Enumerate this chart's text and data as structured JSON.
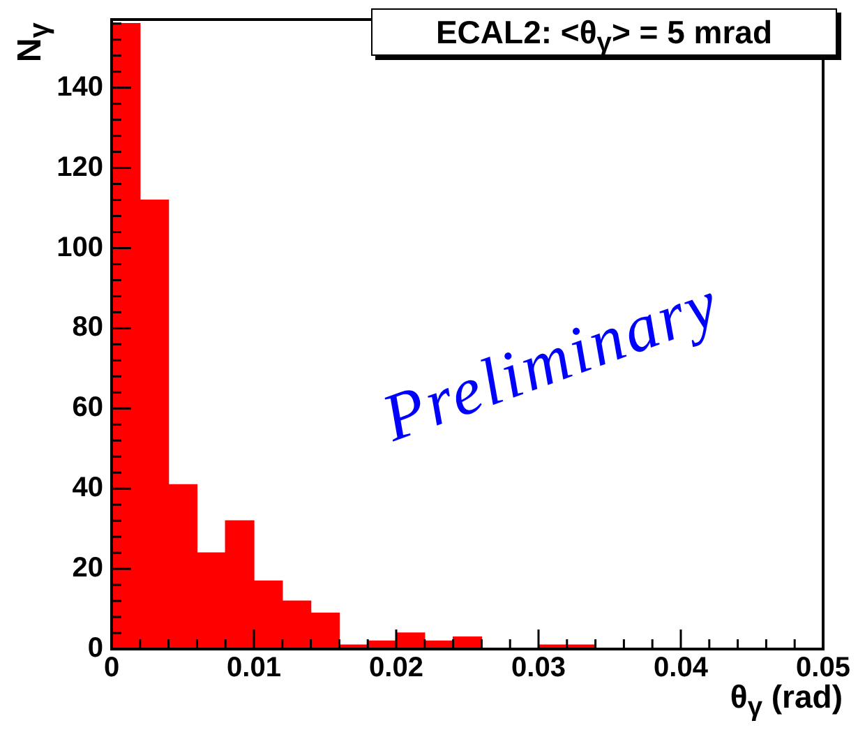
{
  "chart_data": {
    "type": "histogram",
    "title": "ECAL2: <θ$_{γ}$> = 5 mrad",
    "xlabel": "θ$_{γ}$ (rad)",
    "ylabel": "N$_{γ}$",
    "annotations": [
      "Preliminary"
    ],
    "bins": [
      0,
      0.002,
      0.004,
      0.006,
      0.008,
      0.01,
      0.012,
      0.014,
      0.016,
      0.018,
      0.02,
      0.022,
      0.024,
      0.026,
      0.028,
      0.03,
      0.032,
      0.034,
      0.036,
      0.038,
      0.04,
      0.042,
      0.044,
      0.046,
      0.048,
      0.05
    ],
    "values": [
      156,
      112,
      41,
      24,
      32,
      17,
      12,
      9,
      1,
      2,
      4,
      2,
      3,
      0,
      0,
      1,
      1,
      0,
      0,
      0,
      0,
      0,
      0,
      0,
      0
    ],
    "color": "#ff0000",
    "xlim": [
      0,
      0.05
    ],
    "ylim": [
      0,
      157
    ],
    "xticks": [
      0,
      {
        "value": 0.002,
        "label": null
      },
      {
        "value": 0.004,
        "label": null
      },
      {
        "value": 0.006,
        "label": null
      },
      {
        "value": 0.008,
        "label": null
      },
      0.01,
      {
        "value": 0.012,
        "label": null
      },
      {
        "value": 0.014,
        "label": null
      },
      {
        "value": 0.016,
        "label": null
      },
      {
        "value": 0.018,
        "label": null
      },
      0.02,
      {
        "value": 0.022,
        "label": null
      },
      {
        "value": 0.024,
        "label": null
      },
      {
        "value": 0.026,
        "label": null
      },
      {
        "value": 0.028,
        "label": null
      },
      0.03,
      {
        "value": 0.032,
        "label": null
      },
      {
        "value": 0.034,
        "label": null
      },
      {
        "value": 0.036,
        "label": null
      },
      {
        "value": 0.038,
        "label": null
      },
      0.04,
      {
        "value": 0.042,
        "label": null
      },
      {
        "value": 0.044,
        "label": null
      },
      {
        "value": 0.046,
        "label": null
      },
      {
        "value": 0.048,
        "label": null
      },
      0.05
    ],
    "yticks": [
      0,
      {
        "value": 4,
        "label": null
      },
      {
        "value": 8,
        "label": null
      },
      {
        "value": 12,
        "label": null
      },
      {
        "value": 16,
        "label": null
      },
      20,
      {
        "value": 24,
        "label": null
      },
      {
        "value": 28,
        "label": null
      },
      {
        "value": 32,
        "label": null
      },
      {
        "value": 36,
        "label": null
      },
      40,
      {
        "value": 44,
        "label": null
      },
      {
        "value": 48,
        "label": null
      },
      {
        "value": 52,
        "label": null
      },
      {
        "value": 56,
        "label": null
      },
      60,
      {
        "value": 64,
        "label": null
      },
      {
        "value": 68,
        "label": null
      },
      {
        "value": 72,
        "label": null
      },
      {
        "value": 76,
        "label": null
      },
      80,
      {
        "value": 84,
        "label": null
      },
      {
        "value": 88,
        "label": null
      },
      {
        "value": 92,
        "label": null
      },
      {
        "value": 96,
        "label": null
      },
      100,
      {
        "value": 104,
        "label": null
      },
      {
        "value": 108,
        "label": null
      },
      {
        "value": 112,
        "label": null
      },
      {
        "value": 116,
        "label": null
      },
      120,
      {
        "value": 124,
        "label": null
      },
      {
        "value": 128,
        "label": null
      },
      {
        "value": 132,
        "label": null
      },
      {
        "value": 136,
        "label": null
      },
      140,
      {
        "value": 144,
        "label": null
      },
      {
        "value": 148,
        "label": null
      },
      {
        "value": 152,
        "label": null
      },
      {
        "value": 156,
        "label": null
      }
    ],
    "grid": false,
    "legend": false
  }
}
